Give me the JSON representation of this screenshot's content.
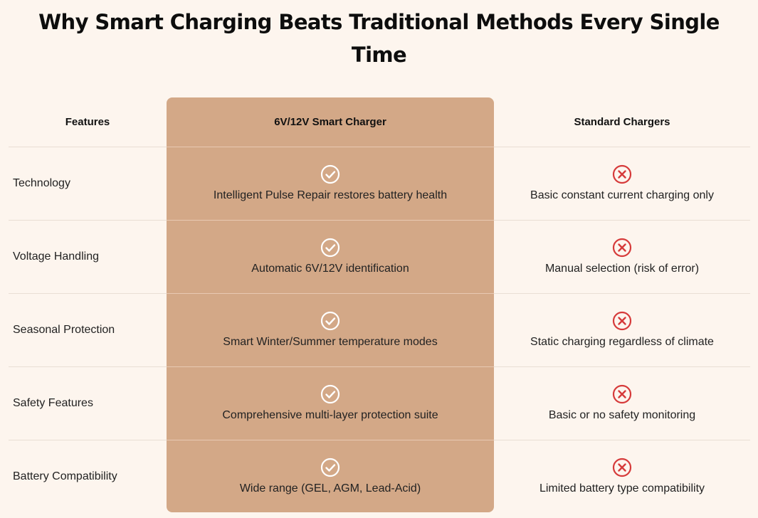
{
  "title": "Why Smart Charging Beats Traditional Methods Every Single Time",
  "table": {
    "headers": {
      "feature": "Features",
      "smart": "6V/12V Smart Charger",
      "standard": "Standard Chargers"
    },
    "rows": [
      {
        "feature": "Technology",
        "smart": "Intelligent Pulse Repair restores battery health",
        "standard": "Basic constant current charging only"
      },
      {
        "feature": "Voltage Handling",
        "smart": "Automatic 6V/12V identification",
        "standard": "Manual selection (risk of error)"
      },
      {
        "feature": "Seasonal Protection",
        "smart": "Smart Winter/Summer temperature modes",
        "standard": "Static charging regardless of climate"
      },
      {
        "feature": "Safety Features",
        "smart": "Comprehensive multi-layer protection suite",
        "standard": "Basic or no safety monitoring"
      },
      {
        "feature": "Battery Compatibility",
        "smart": "Wide range (GEL, AGM, Lead-Acid)",
        "standard": "Limited battery type compatibility"
      }
    ]
  },
  "icons": {
    "smart": "check-circle-icon",
    "standard": "x-circle-icon"
  },
  "colors": {
    "background": "#fdf5ee",
    "highlight_column": "#d3a887",
    "check_icon": "#ffffff",
    "x_icon": "#d63a3a"
  }
}
